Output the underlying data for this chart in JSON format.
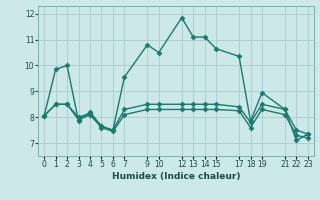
{
  "title": "",
  "xlabel": "Humidex (Indice chaleur)",
  "bg_color": "#cce8e8",
  "line_color": "#1a7a70",
  "grid_color": "#aacccc",
  "xlim": [
    -0.5,
    23.5
  ],
  "ylim": [
    6.5,
    12.3
  ],
  "xticks": [
    0,
    1,
    2,
    3,
    4,
    5,
    6,
    7,
    9,
    10,
    12,
    13,
    14,
    15,
    17,
    18,
    19,
    21,
    22,
    23
  ],
  "xticklabels": [
    "0",
    "1",
    "2",
    "3",
    "4",
    "5",
    "6",
    "7",
    "9",
    "10",
    "12",
    "13",
    "14",
    "15",
    "17",
    "18",
    "19",
    "21",
    "22",
    "23"
  ],
  "yticks": [
    7,
    8,
    9,
    10,
    11,
    12
  ],
  "lines": [
    {
      "x": [
        0,
        1,
        2,
        3,
        4,
        5,
        6,
        7,
        9,
        10,
        12,
        13,
        14,
        15,
        17,
        18,
        19,
        21,
        22,
        23
      ],
      "y": [
        8.05,
        9.85,
        10.0,
        7.85,
        8.2,
        7.65,
        7.5,
        9.55,
        10.8,
        10.5,
        11.85,
        11.1,
        11.1,
        10.65,
        10.35,
        7.85,
        8.95,
        8.3,
        7.1,
        7.35
      ]
    },
    {
      "x": [
        0,
        1,
        2,
        3,
        4,
        5,
        6,
        7,
        9,
        10,
        12,
        13,
        14,
        15,
        17,
        18,
        19,
        21,
        22,
        23
      ],
      "y": [
        8.05,
        8.5,
        8.5,
        8.0,
        8.15,
        7.65,
        7.5,
        8.3,
        8.5,
        8.5,
        8.5,
        8.5,
        8.5,
        8.5,
        8.4,
        7.8,
        8.5,
        8.3,
        7.5,
        7.35
      ]
    },
    {
      "x": [
        0,
        1,
        2,
        3,
        4,
        5,
        6,
        7,
        9,
        10,
        12,
        13,
        14,
        15,
        17,
        18,
        19,
        21,
        22,
        23
      ],
      "y": [
        8.05,
        8.5,
        8.5,
        7.9,
        8.1,
        7.6,
        7.45,
        8.1,
        8.3,
        8.3,
        8.3,
        8.3,
        8.3,
        8.3,
        8.25,
        7.6,
        8.3,
        8.1,
        7.3,
        7.2
      ]
    }
  ],
  "marker": "D",
  "markersize": 2.5,
  "linewidth": 1.0,
  "tick_fontsize": 5.5,
  "xlabel_fontsize": 6.5
}
